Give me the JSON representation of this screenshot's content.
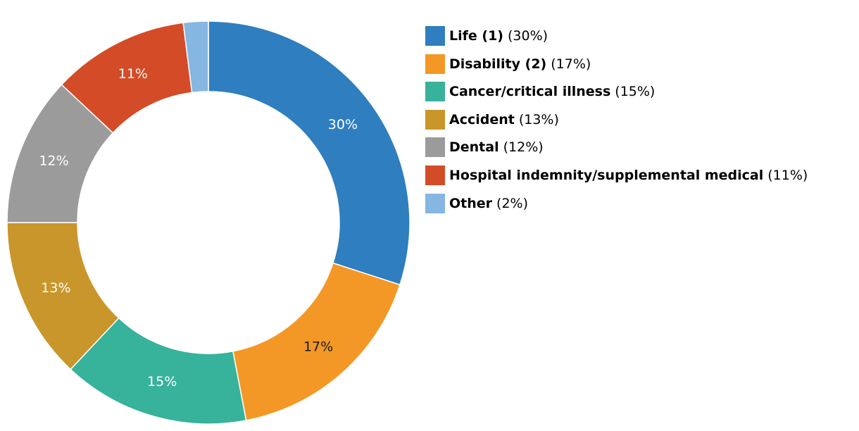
{
  "chart_data": {
    "type": "pie",
    "subtype": "donut",
    "legend_position": "right",
    "slices": [
      {
        "name": "Life (1)",
        "value": 30,
        "display_label": "30%",
        "legend_pct": "(30%)",
        "color": "#2f7ebf",
        "label_color": "#ffffff"
      },
      {
        "name": "Disability (2)",
        "value": 17,
        "display_label": "17%",
        "legend_pct": "(17%)",
        "color": "#f39826",
        "label_color": "#1a1a1a"
      },
      {
        "name": "Cancer/critical illness",
        "value": 15,
        "display_label": "15%",
        "legend_pct": "(15%)",
        "color": "#37b29b",
        "label_color": "#ffffff"
      },
      {
        "name": "Accident",
        "value": 13,
        "display_label": "13%",
        "legend_pct": "(13%)",
        "color": "#c9962b",
        "label_color": "#ffffff"
      },
      {
        "name": "Dental",
        "value": 12,
        "display_label": "12%",
        "legend_pct": "(12%)",
        "color": "#9b9b9b",
        "label_color": "#ffffff"
      },
      {
        "name": "Hospital indemnity/supplemental medical",
        "value": 11,
        "display_label": "11%",
        "legend_pct": "(11%)",
        "color": "#d34c27",
        "label_color": "#ffffff"
      },
      {
        "name": "Other",
        "value": 2,
        "display_label": "",
        "legend_pct": "(2%)",
        "color": "#86b6e2",
        "label_color": "#ffffff"
      }
    ]
  }
}
